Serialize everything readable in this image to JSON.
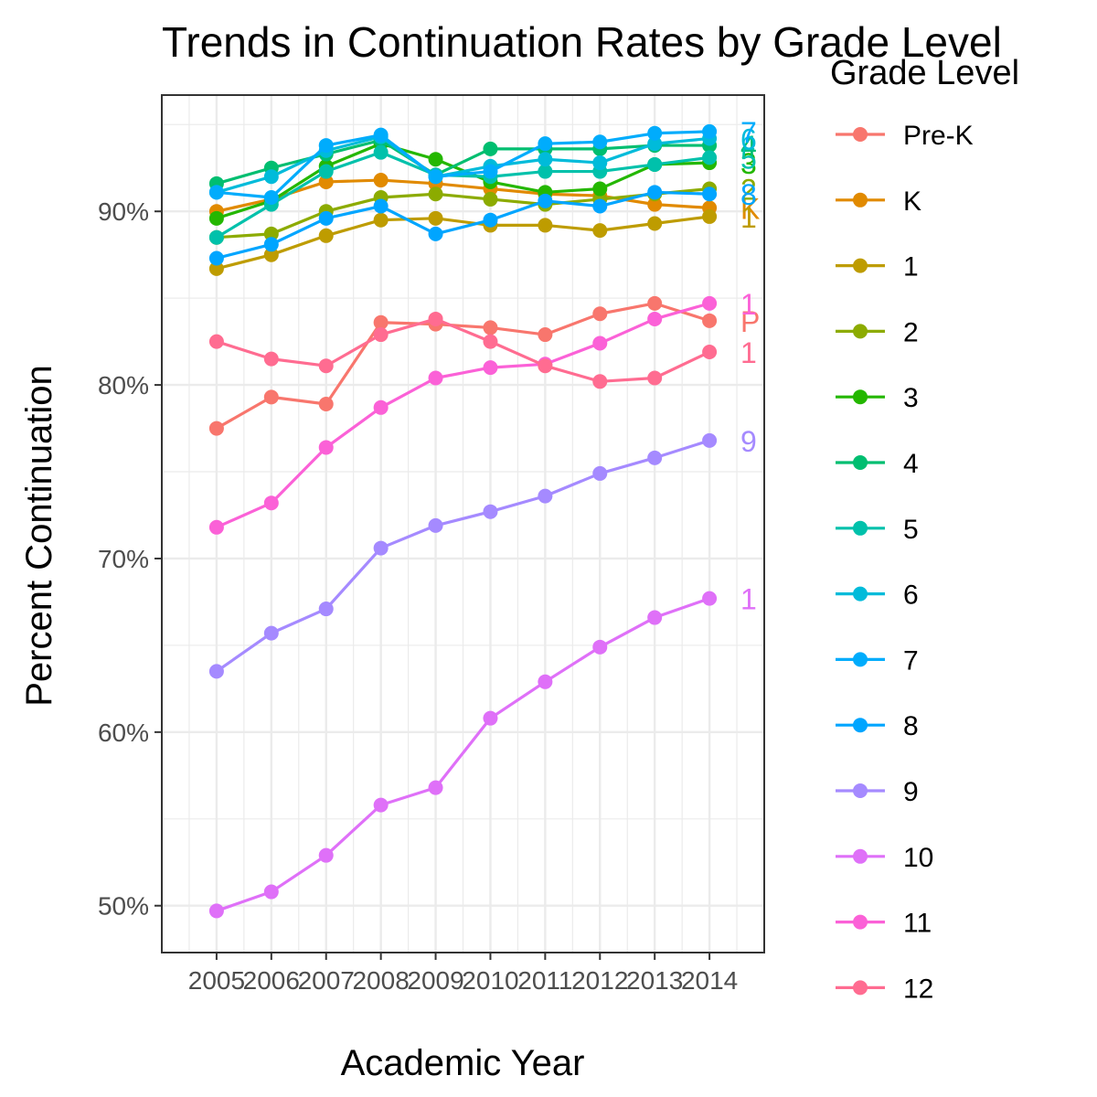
{
  "chart_data": {
    "type": "line",
    "title": "Trends in Continuation Rates by Grade Level",
    "xlabel": "Academic Year",
    "ylabel": "Percent Continuation",
    "x": [
      "2005",
      "2006",
      "2007",
      "2008",
      "2009",
      "2010",
      "2011",
      "2012",
      "2013",
      "2014"
    ],
    "xlim": [
      2004,
      2015
    ],
    "ylim": [
      47.3,
      96.7
    ],
    "y_ticks": [
      50,
      60,
      70,
      80,
      90
    ],
    "y_tick_labels": [
      "50%",
      "60%",
      "70%",
      "80%",
      "90%"
    ],
    "grid": true,
    "legend": {
      "title": "Grade Level",
      "position": "right"
    },
    "series": [
      {
        "name": "Pre-K",
        "label": "P",
        "color": "#F8766D",
        "values": [
          77.5,
          79.3,
          78.9,
          83.6,
          83.5,
          83.3,
          82.9,
          84.1,
          84.7,
          83.7
        ]
      },
      {
        "name": "K",
        "label": "K",
        "color": "#E18A00",
        "values": [
          90.0,
          90.7,
          91.7,
          91.8,
          91.6,
          91.3,
          91.0,
          90.9,
          90.4,
          90.2
        ]
      },
      {
        "name": "1",
        "label": "1",
        "color": "#BE9C00",
        "values": [
          86.7,
          87.5,
          88.6,
          89.5,
          89.6,
          89.2,
          89.2,
          88.9,
          89.3,
          89.7
        ]
      },
      {
        "name": "2",
        "label": "2",
        "color": "#8CAB00",
        "values": [
          88.5,
          88.7,
          90.0,
          90.8,
          91.0,
          90.7,
          90.4,
          90.7,
          91.0,
          91.3
        ]
      },
      {
        "name": "3",
        "label": "3",
        "color": "#24B700",
        "values": [
          89.6,
          90.6,
          92.6,
          93.9,
          93.0,
          91.7,
          91.1,
          91.3,
          92.7,
          92.8
        ]
      },
      {
        "name": "4",
        "label": "4",
        "color": "#00BE70",
        "values": [
          91.6,
          92.5,
          93.3,
          94.1,
          92.1,
          93.6,
          93.6,
          93.6,
          93.8,
          93.8
        ]
      },
      {
        "name": "5",
        "label": "5",
        "color": "#00C1AB",
        "values": [
          88.5,
          90.4,
          92.3,
          93.4,
          92.1,
          92.0,
          92.3,
          92.3,
          92.7,
          93.1
        ]
      },
      {
        "name": "6",
        "label": "6",
        "color": "#00BBDA",
        "values": [
          91.1,
          92.0,
          93.5,
          94.3,
          92.0,
          92.6,
          93.0,
          92.8,
          93.9,
          94.2
        ]
      },
      {
        "name": "7",
        "label": "7",
        "color": "#00ACFC",
        "values": [
          91.1,
          90.8,
          93.8,
          94.4,
          92.0,
          92.3,
          93.9,
          94.0,
          94.5,
          94.6
        ]
      },
      {
        "name": "8",
        "label": "8",
        "color": "#00A5FF",
        "values": [
          87.3,
          88.1,
          89.6,
          90.3,
          88.7,
          89.5,
          90.6,
          90.3,
          91.1,
          91.0
        ]
      },
      {
        "name": "9",
        "label": "9",
        "color": "#A58AFF",
        "values": [
          63.5,
          65.7,
          67.1,
          70.6,
          71.9,
          72.7,
          73.6,
          74.9,
          75.8,
          76.8
        ]
      },
      {
        "name": "10",
        "label": "1",
        "color": "#DF70F8",
        "values": [
          49.7,
          50.8,
          52.9,
          55.8,
          56.8,
          60.8,
          62.9,
          64.9,
          66.6,
          67.7
        ]
      },
      {
        "name": "11",
        "label": "1",
        "color": "#FB61D7",
        "values": [
          71.8,
          73.2,
          76.4,
          78.7,
          80.4,
          81.0,
          81.2,
          82.4,
          83.8,
          84.7
        ]
      },
      {
        "name": "12",
        "label": "1",
        "color": "#FF6C91",
        "values": [
          82.5,
          81.5,
          81.1,
          82.9,
          83.8,
          82.5,
          81.1,
          80.2,
          80.4,
          81.9
        ]
      }
    ]
  }
}
